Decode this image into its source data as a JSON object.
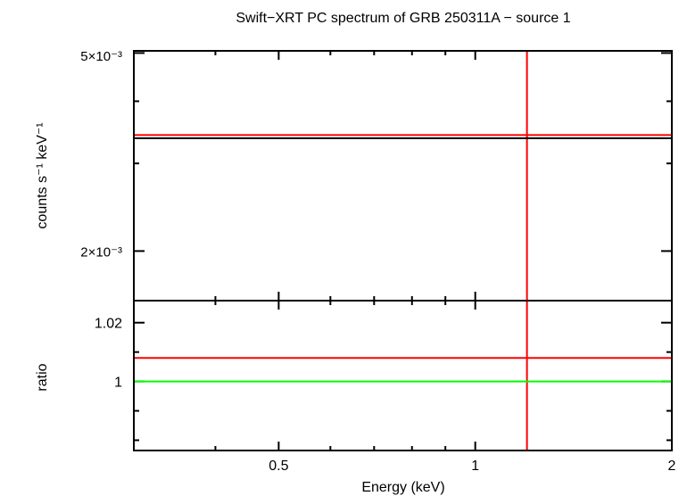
{
  "chart_data": {
    "type": "line",
    "title": "Swift−XRT PC spectrum of GRB 250311A − source 1",
    "xlabel": "Energy (keV)",
    "x_scale": "log",
    "xlim": [
      0.3,
      2.0
    ],
    "x_ticks": [
      {
        "value": 0.5,
        "label": "0.5"
      },
      {
        "value": 1,
        "label": "1"
      },
      {
        "value": 2,
        "label": "2"
      }
    ],
    "upper_panel": {
      "ylabel": "counts s⁻¹ keV⁻¹",
      "y_scale": "log",
      "ylim": [
        0.00159,
        0.00505
      ],
      "y_ticks": [
        {
          "value": 0.005,
          "label": "5×10⁻³"
        },
        {
          "value": 0.002,
          "label": "2×10⁻³"
        }
      ],
      "series": [
        {
          "color": "#ff0000",
          "y": 0.00342,
          "x_range": [
            0.3,
            2.0
          ],
          "error_x": 1.2,
          "error_y": [
            0.00159,
            0.00505
          ]
        },
        {
          "color": "#000000",
          "y": 0.00337,
          "x_range": [
            0.3,
            2.0
          ]
        }
      ]
    },
    "lower_panel": {
      "ylabel": "ratio",
      "y_scale": "linear",
      "ylim": [
        0.9765,
        1.0275
      ],
      "y_ticks": [
        {
          "value": 1.0,
          "label": "1"
        },
        {
          "value": 1.02,
          "label": "1.02"
        }
      ],
      "series": [
        {
          "color": "#ff0000",
          "y": 1.008,
          "x_range": [
            0.3,
            2.0
          ],
          "error_x": 1.2
        },
        {
          "color": "#00ff00",
          "y": 1.0,
          "x_range": [
            0.3,
            2.0
          ]
        }
      ]
    }
  }
}
